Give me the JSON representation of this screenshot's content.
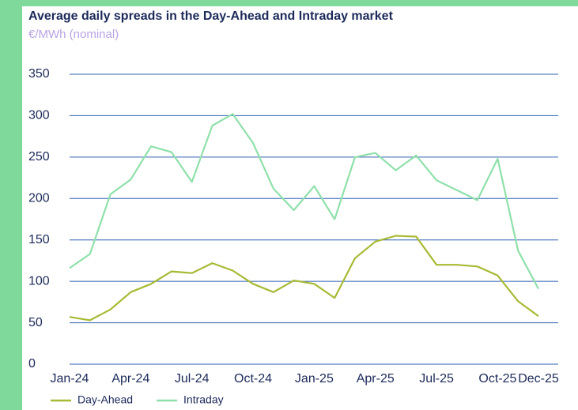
{
  "chart_data": {
    "type": "line",
    "title": "Average daily spreads in the Day-Ahead and Intraday market",
    "subtitle": "€/MWh (nominal)",
    "categories": [
      "Jan-24",
      null,
      null,
      "Apr-24",
      null,
      null,
      "Jul-24",
      null,
      null,
      "Oct-24",
      null,
      null,
      "Jan-25",
      null,
      null,
      "Apr-25",
      null,
      null,
      "Jul-25",
      null,
      null,
      "Oct-25",
      null,
      "Dec-25"
    ],
    "series": [
      {
        "name": "Day-Ahead",
        "color": "#a8b933",
        "values": [
          57,
          53,
          66,
          87,
          97,
          112,
          110,
          122,
          113,
          97,
          87,
          101,
          97,
          80,
          128,
          148,
          155,
          154,
          120,
          120,
          118,
          107,
          76,
          58
        ]
      },
      {
        "name": "Intraday",
        "color": "#8fe0aa",
        "values": [
          116,
          133,
          205,
          223,
          263,
          256,
          220,
          288,
          302,
          267,
          212,
          186,
          215,
          175,
          250,
          255,
          234,
          252,
          222,
          210,
          198,
          248,
          137,
          91
        ]
      }
    ],
    "ylim": [
      0,
      350
    ],
    "yticks": [
      0,
      50,
      100,
      150,
      200,
      250,
      300,
      350
    ],
    "grid": true,
    "legend": "bottom"
  }
}
